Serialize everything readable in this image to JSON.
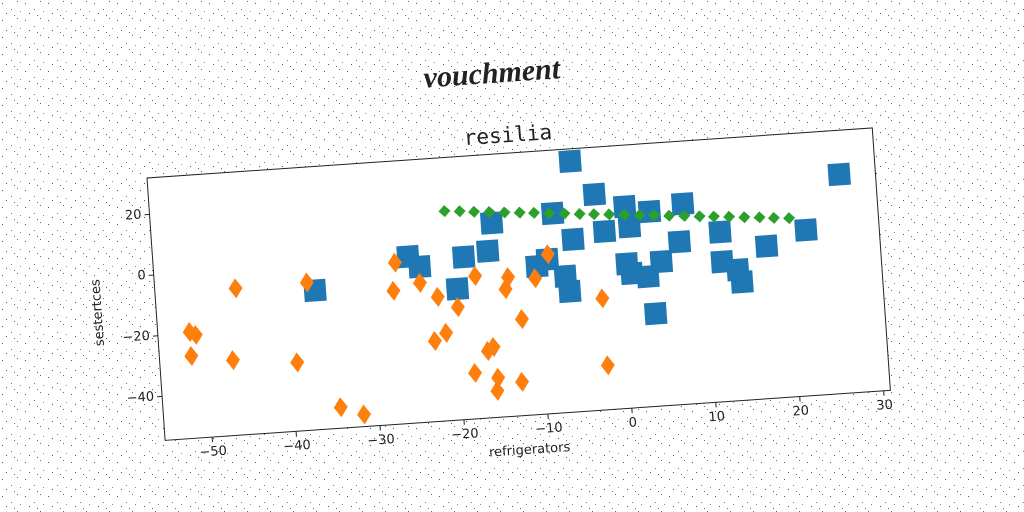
{
  "chart_data": {
    "type": "scatter",
    "suptitle": "vouchment",
    "title": "resilia",
    "xlabel": "refrigerators",
    "ylabel": "sestertces",
    "xlim": [
      -55.6,
      30.8
    ],
    "ylim": [
      -54.5,
      32
    ],
    "xticks": [
      {
        "value": -50,
        "label": "−50"
      },
      {
        "value": -40,
        "label": "−40"
      },
      {
        "value": -30,
        "label": "−30"
      },
      {
        "value": -20,
        "label": "−20"
      },
      {
        "value": -10,
        "label": "−10"
      },
      0,
      10,
      20,
      30
    ],
    "yticks": [
      {
        "value": -40,
        "label": "−40"
      },
      {
        "value": -20,
        "label": "−20"
      },
      0,
      20
    ],
    "grid": false,
    "series": [
      {
        "color": "#1f77b4",
        "marker": "square",
        "x": [
          -5.3,
          -2.7,
          -15.1,
          -15.8,
          -18.7,
          -25.3,
          -24.0,
          -36.6,
          -19.7,
          -10.1,
          -8.8,
          -7.8,
          -5.6,
          -6.8,
          -6.4,
          -1.8,
          0.8,
          1.2,
          3.7,
          7.7,
          7.0,
          4.7,
          0.6,
          1.1,
          3.0,
          3.6,
          11.9,
          11.9,
          13.7,
          14.1,
          17.3,
          22.1,
          26.5
        ],
        "values": [
          27.9,
          16.5,
          9.4,
          0.3,
          -1.1,
          0.3,
          -3.3,
          -8.7,
          -11.4,
          -5.8,
          -3.8,
          11.2,
          2.2,
          -9.7,
          -14.8,
          4.1,
          11.8,
          5.1,
          9.6,
          11.4,
          -1.0,
          -7.1,
          -7.0,
          -10.3,
          -11.7,
          -24.0,
          1.3,
          -8.5,
          -11.5,
          -15.6,
          -4.4,
          0.0,
          17.5
        ]
      },
      {
        "color": "#ff7f0e",
        "marker": "thin-diamond",
        "x": [
          -46.0,
          -37.5,
          -26.9,
          -27.3,
          -24.1,
          -22.1,
          -19.8,
          -17.5,
          -13.6,
          -14.0,
          -10.4,
          -8.7,
          -2.6,
          -51.8,
          -51.1,
          -51.8,
          -46.9,
          -39.3,
          -22.8,
          -21.4,
          -12.3,
          -16.6,
          -15.9,
          -18.3,
          -15.6,
          -15.8,
          -12.8,
          -2.5,
          -34.5,
          -31.8
        ],
        "values": [
          -6.2,
          -5.9,
          -1.4,
          -10.6,
          -8.6,
          -13.6,
          -17.4,
          -7.6,
          -8.7,
          -12.6,
          -9.7,
          -2.1,
          -17.8,
          -19.5,
          -20.6,
          -27.4,
          -29.7,
          -31.9,
          -28.0,
          -25.6,
          -22.8,
          -32.5,
          -31.3,
          -39.4,
          -41.5,
          -45.8,
          -43.4,
          -39.9,
          -47.6,
          -50.5
        ]
      },
      {
        "color": "#2ca02c",
        "marker": "diamond",
        "x": [
          -20.6,
          -18.8,
          -17.1,
          -15.3,
          -13.5,
          -11.7,
          -10.0,
          -8.2,
          -6.4,
          -4.6,
          -2.9,
          -1.1,
          0.7,
          2.5,
          4.2,
          6.0,
          7.8,
          9.6,
          11.3,
          13.1,
          14.9,
          16.7,
          18.4,
          20.2
        ],
        "values": [
          14.4,
          14.0,
          13.5,
          13.1,
          12.6,
          12.2,
          11.8,
          11.3,
          10.9,
          10.4,
          10.0,
          9.6,
          9.1,
          8.7,
          8.3,
          7.8,
          7.4,
          6.9,
          6.5,
          6.1,
          5.6,
          5.2,
          4.7,
          4.3
        ]
      }
    ]
  }
}
